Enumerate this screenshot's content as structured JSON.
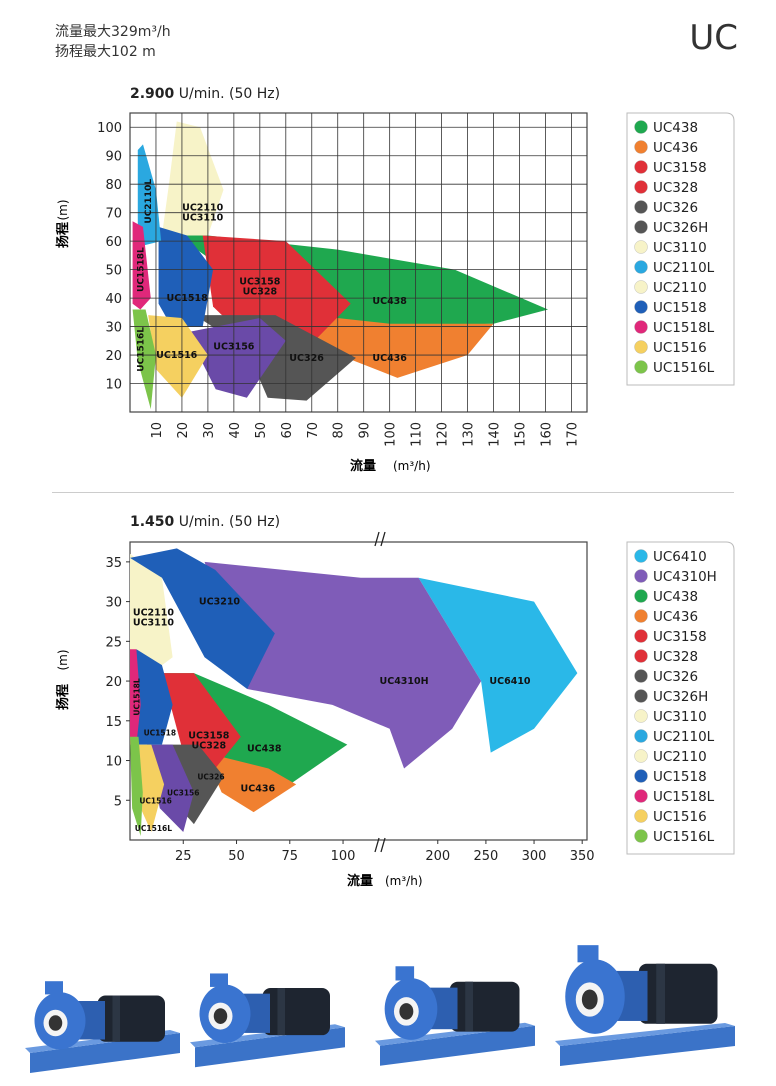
{
  "header": {
    "flow_max": "流量最大329m³/h",
    "head_max": "扬程最大102 m",
    "model": "UC"
  },
  "chart_data": [
    {
      "type": "area",
      "title_bold": "2.900",
      "title_rest": " U/min.  (50 Hz)",
      "ylabel": "扬程",
      "yunit": "(m)",
      "xlabel": "流量",
      "xunit": "(m³/h)",
      "xticks": [
        10,
        20,
        30,
        40,
        50,
        60,
        70,
        80,
        90,
        100,
        110,
        120,
        130,
        140,
        150,
        160,
        170
      ],
      "yticks": [
        10,
        20,
        30,
        40,
        50,
        60,
        70,
        80,
        90,
        100
      ],
      "xlim": [
        0,
        176
      ],
      "ylim": [
        0,
        105
      ],
      "legend": [
        {
          "name": "UC438",
          "color": "#1fa84f"
        },
        {
          "name": "UC436",
          "color": "#f08030"
        },
        {
          "name": "UC3158",
          "color": "#e03038"
        },
        {
          "name": "UC328",
          "color": "#e03038"
        },
        {
          "name": "UC326",
          "color": "#555555"
        },
        {
          "name": "UC326H",
          "color": "#555555"
        },
        {
          "name": "UC3110",
          "color": "#f7f3c8"
        },
        {
          "name": "UC2110L",
          "color": "#2aa8e0"
        },
        {
          "name": "UC2110",
          "color": "#f7f3c8"
        },
        {
          "name": "UC1518",
          "color": "#1f5fb8"
        },
        {
          "name": "UC1518L",
          "color": "#e0287a"
        },
        {
          "name": "UC1516",
          "color": "#f5d060"
        },
        {
          "name": "UC1516L",
          "color": "#7cc44a"
        }
      ],
      "regions": [
        {
          "label": "UC2110\nUC3110",
          "color": "#f7f3c8",
          "points": [
            [
              15,
              80
            ],
            [
              18,
              102
            ],
            [
              27,
              100
            ],
            [
              36,
              78
            ],
            [
              30,
              62
            ],
            [
              12,
              60
            ]
          ],
          "lx": 28,
          "ly": 70
        },
        {
          "label": "UC438",
          "color": "#1fa84f",
          "points": [
            [
              18,
              62
            ],
            [
              30,
              62
            ],
            [
              80,
              57
            ],
            [
              125,
              50
            ],
            [
              161,
              36
            ],
            [
              140,
              31
            ],
            [
              100,
              30
            ],
            [
              60,
              35
            ]
          ],
          "lx": 100,
          "ly": 39
        },
        {
          "label": "UC436",
          "color": "#f08030",
          "points": [
            [
              60,
              35
            ],
            [
              100,
              31
            ],
            [
              140,
              31
            ],
            [
              130,
              20
            ],
            [
              103,
              12
            ],
            [
              75,
              22
            ]
          ],
          "lx": 100,
          "ly": 19
        },
        {
          "label": "UC3158\nUC328",
          "color": "#e03038",
          "points": [
            [
              28,
              62
            ],
            [
              60,
              60
            ],
            [
              85,
              38
            ],
            [
              70,
              24
            ],
            [
              40,
              30
            ],
            [
              32,
              37
            ]
          ],
          "lx": 50,
          "ly": 44
        },
        {
          "label": "UC326",
          "color": "#555555",
          "points": [
            [
              25,
              34
            ],
            [
              56,
              34
            ],
            [
              87,
              19
            ],
            [
              68,
              4
            ],
            [
              53,
              5
            ],
            [
              45,
              22
            ]
          ],
          "lx": 68,
          "ly": 19
        },
        {
          "label": "UC3156",
          "color": "#6a4aa8",
          "points": [
            [
              22,
              28
            ],
            [
              50,
              33
            ],
            [
              60,
              25
            ],
            [
              45,
              5
            ],
            [
              33,
              8
            ]
          ],
          "lx": 40,
          "ly": 23
        },
        {
          "label": "UC1518",
          "color": "#1f5fb8",
          "points": [
            [
              11,
              65
            ],
            [
              22,
              62
            ],
            [
              32,
              50
            ],
            [
              28,
              30
            ],
            [
              16,
              30
            ],
            [
              11,
              38
            ]
          ],
          "lx": 22,
          "ly": 40
        },
        {
          "label": "UC2110L",
          "color": "#2aa8e0",
          "points": [
            [
              3,
              92
            ],
            [
              5,
              94
            ],
            [
              10,
              78
            ],
            [
              12,
              60
            ],
            [
              3,
              58
            ]
          ],
          "lx": 7,
          "ly": 74
        },
        {
          "label": "UC1518L",
          "color": "#e0287a",
          "points": [
            [
              1,
              67
            ],
            [
              5,
              65
            ],
            [
              8,
              40
            ],
            [
              4,
              36
            ],
            [
              1,
              38
            ]
          ],
          "lx": 4,
          "ly": 50
        },
        {
          "label": "UC1516",
          "color": "#f5d060",
          "points": [
            [
              7,
              34
            ],
            [
              20,
              33
            ],
            [
              30,
              20
            ],
            [
              20,
              5
            ],
            [
              10,
              15
            ]
          ],
          "lx": 18,
          "ly": 20
        },
        {
          "label": "UC1516L",
          "color": "#7cc44a",
          "points": [
            [
              1,
              36
            ],
            [
              6,
              36
            ],
            [
              10,
              20
            ],
            [
              8,
              1
            ],
            [
              3,
              18
            ]
          ],
          "lx": 4,
          "ly": 22
        }
      ]
    },
    {
      "type": "area",
      "title_bold": "1.450",
      "title_rest": " U/min.  (50 Hz)",
      "ylabel": "扬程",
      "yunit": "(m)",
      "xlabel": "流量",
      "xunit": "(m³/h)",
      "xticks_left": [
        25,
        50,
        75,
        100
      ],
      "xticks_right": [
        200,
        250,
        300,
        350
      ],
      "yticks": [
        5,
        10,
        15,
        20,
        25,
        30,
        35
      ],
      "ylim": [
        0,
        37.5
      ],
      "legend": [
        {
          "name": "UC6410",
          "color": "#2ab8e8"
        },
        {
          "name": "UC4310H",
          "color": "#7f5cb8"
        },
        {
          "name": "UC438",
          "color": "#1fa84f"
        },
        {
          "name": "UC436",
          "color": "#f08030"
        },
        {
          "name": "UC3158",
          "color": "#e03038"
        },
        {
          "name": "UC328",
          "color": "#e03038"
        },
        {
          "name": "UC326",
          "color": "#555555"
        },
        {
          "name": "UC326H",
          "color": "#555555"
        },
        {
          "name": "UC3110",
          "color": "#f7f3c8"
        },
        {
          "name": "UC2110L",
          "color": "#2aa8e0"
        },
        {
          "name": "UC2110",
          "color": "#f7f3c8"
        },
        {
          "name": "UC1518",
          "color": "#1f5fb8"
        },
        {
          "name": "UC1518L",
          "color": "#e0287a"
        },
        {
          "name": "UC1516",
          "color": "#f5d060"
        },
        {
          "name": "UC1516L",
          "color": "#7cc44a"
        }
      ],
      "regions": [
        {
          "label": "UC6410",
          "color": "#2ab8e8",
          "points": [
            [
              180,
              33
            ],
            [
              300,
              30
            ],
            [
              345,
              21
            ],
            [
              300,
              14
            ],
            [
              255,
              11
            ],
            [
              245,
              20
            ]
          ],
          "lx": 275,
          "ly": 20
        },
        {
          "label": "UC4310H",
          "color": "#7f5cb8",
          "points": [
            [
              35,
              35
            ],
            [
              120,
              33
            ],
            [
              180,
              33
            ],
            [
              245,
              20
            ],
            [
              215,
              14
            ],
            [
              165,
              9
            ],
            [
              150,
              14
            ],
            [
              95,
              17
            ],
            [
              55,
              19
            ]
          ],
          "lx": 165,
          "ly": 20
        },
        {
          "label": "UC2110\nUC3110",
          "color": "#f7f3c8",
          "points": [
            [
              0,
              36
            ],
            [
              15,
              33
            ],
            [
              20,
              23
            ],
            [
              10,
              21
            ],
            [
              0,
              21
            ]
          ],
          "lx": 11,
          "ly": 28
        },
        {
          "label": "UC3210",
          "color": "#1f5fb8",
          "points": [
            [
              0,
              35.5
            ],
            [
              22,
              36.7
            ],
            [
              40,
              34
            ],
            [
              68,
              26
            ],
            [
              55,
              19
            ],
            [
              35,
              23
            ],
            [
              15,
              33
            ]
          ],
          "lx": 42,
          "ly": 30
        },
        {
          "label": "UC438",
          "color": "#1fa84f",
          "points": [
            [
              15,
              21
            ],
            [
              30,
              21
            ],
            [
              65,
              17
            ],
            [
              102,
              12
            ],
            [
              75,
              7
            ],
            [
              45,
              10
            ],
            [
              30,
              13
            ]
          ],
          "lx": 63,
          "ly": 11.5
        },
        {
          "label": "UC436",
          "color": "#f08030",
          "points": [
            [
              35,
              11
            ],
            [
              65,
              9
            ],
            [
              78,
              7
            ],
            [
              58,
              3.5
            ],
            [
              43,
              6
            ]
          ],
          "lx": 60,
          "ly": 6.5
        },
        {
          "label": "UC3158\nUC328",
          "color": "#e03038",
          "points": [
            [
              15,
              21
            ],
            [
              30,
              21
            ],
            [
              52,
              13
            ],
            [
              40,
              9
            ],
            [
              25,
              11
            ]
          ],
          "lx": 37,
          "ly": 12.5
        },
        {
          "label": "UC326",
          "color": "#555555",
          "points": [
            [
              15,
              12
            ],
            [
              32,
              12
            ],
            [
              44,
              8
            ],
            [
              30,
              2
            ],
            [
              20,
              5
            ]
          ],
          "lx": 38,
          "ly": 8
        },
        {
          "label": "UC3156",
          "color": "#6a4aa8",
          "points": [
            [
              8,
              12
            ],
            [
              20,
              12
            ],
            [
              30,
              6
            ],
            [
              25,
              1
            ],
            [
              14,
              4
            ]
          ],
          "lx": 25,
          "ly": 6
        },
        {
          "label": "UC1518",
          "color": "#1f5fb8",
          "points": [
            [
              3,
              24
            ],
            [
              15,
              22
            ],
            [
              20,
              17
            ],
            [
              15,
              12
            ],
            [
              3,
              12
            ]
          ],
          "lx": 14,
          "ly": 13.5
        },
        {
          "label": "UC1518L",
          "color": "#e0287a",
          "points": [
            [
              0,
              24
            ],
            [
              3,
              24
            ],
            [
              5,
              17
            ],
            [
              3,
              12
            ],
            [
              0,
              12
            ]
          ],
          "lx": 3,
          "ly": 18
        },
        {
          "label": "UC1516",
          "color": "#f5d060",
          "points": [
            [
              3,
              12
            ],
            [
              10,
              12
            ],
            [
              16,
              7
            ],
            [
              10,
              1
            ],
            [
              5,
              4
            ]
          ],
          "lx": 12,
          "ly": 5
        },
        {
          "label": "UC1516L",
          "color": "#7cc44a",
          "points": [
            [
              0,
              13
            ],
            [
              4,
              13
            ],
            [
              6,
              6
            ],
            [
              5,
              0.5
            ],
            [
              1,
              4
            ]
          ],
          "lx": 11,
          "ly": 1.5
        }
      ]
    }
  ],
  "pumps": [
    {
      "name": "pump-small"
    },
    {
      "name": "pump-medium"
    },
    {
      "name": "pump-large"
    },
    {
      "name": "pump-xlarge"
    }
  ]
}
